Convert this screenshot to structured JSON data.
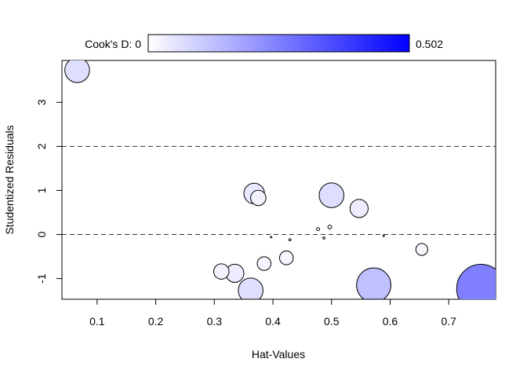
{
  "chart_data": {
    "type": "scatter",
    "xlabel": "Hat-Values",
    "ylabel": "Studentized Residuals",
    "xlim": [
      0.04,
      0.78
    ],
    "ylim": [
      -1.47,
      3.95
    ],
    "x_ticks": [
      0.1,
      0.2,
      0.3,
      0.4,
      0.5,
      0.6,
      0.7
    ],
    "y_ticks": [
      -1,
      0,
      1,
      2,
      3
    ],
    "x_tick_labels": [
      "0.1",
      "0.2",
      "0.3",
      "0.4",
      "0.5",
      "0.6",
      "0.7"
    ],
    "y_tick_labels": [
      "-1",
      "0",
      "1",
      "2",
      "3"
    ],
    "reference_lines": [
      0,
      2
    ],
    "grid": false,
    "colorbar": {
      "label": "Cook's D: 0",
      "max_label": "0.502",
      "min_value": 0,
      "max_value": 0.502,
      "color_low": "#ffffff",
      "color_high": "#0000ff"
    },
    "points": [
      {
        "x": 0.066,
        "y": 3.73,
        "cooksd": 0.13
      },
      {
        "x": 0.368,
        "y": 0.93,
        "cooksd": 0.09
      },
      {
        "x": 0.375,
        "y": 0.83,
        "cooksd": 0.05
      },
      {
        "x": 0.5,
        "y": 0.89,
        "cooksd": 0.13
      },
      {
        "x": 0.547,
        "y": 0.59,
        "cooksd": 0.07
      },
      {
        "x": 0.497,
        "y": 0.17,
        "cooksd": 0.003
      },
      {
        "x": 0.477,
        "y": 0.12,
        "cooksd": 0.002
      },
      {
        "x": 0.487,
        "y": -0.08,
        "cooksd": 0.001
      },
      {
        "x": 0.429,
        "y": -0.12,
        "cooksd": 0.001
      },
      {
        "x": 0.397,
        "y": -0.06,
        "cooksd": 0.0005
      },
      {
        "x": 0.589,
        "y": -0.03,
        "cooksd": 0.0003
      },
      {
        "x": 0.654,
        "y": -0.34,
        "cooksd": 0.03
      },
      {
        "x": 0.423,
        "y": -0.53,
        "cooksd": 0.04
      },
      {
        "x": 0.385,
        "y": -0.66,
        "cooksd": 0.04
      },
      {
        "x": 0.312,
        "y": -0.84,
        "cooksd": 0.05
      },
      {
        "x": 0.335,
        "y": -0.88,
        "cooksd": 0.07
      },
      {
        "x": 0.362,
        "y": -1.27,
        "cooksd": 0.13
      },
      {
        "x": 0.572,
        "y": -1.15,
        "cooksd": 0.25
      },
      {
        "x": 0.755,
        "y": -1.23,
        "cooksd": 0.502
      }
    ]
  }
}
